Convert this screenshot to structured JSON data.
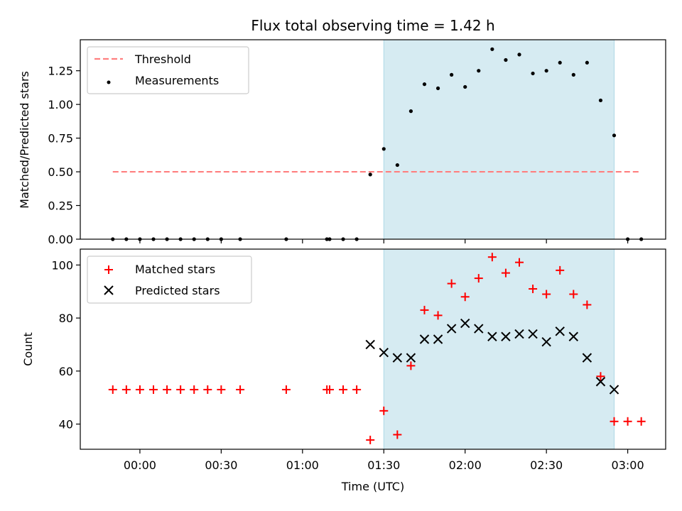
{
  "chart_data": [
    {
      "type": "scatter",
      "title": "Flux total observing time = 1.42 h",
      "xlabel": "",
      "ylabel": "Matched/Predicted stars",
      "xlim": [
        "23:38",
        "03:14"
      ],
      "ylim": [
        0,
        1.48
      ],
      "yticks": [
        "0.00",
        "0.25",
        "0.50",
        "0.75",
        "1.00",
        "1.25"
      ],
      "ytick_values": [
        0,
        0.25,
        0.5,
        0.75,
        1.0,
        1.25
      ],
      "grid": false,
      "legend": "top-left",
      "shaded_region": {
        "start": "01:30",
        "end": "02:55",
        "color": "#add8e6"
      },
      "series": [
        {
          "name": "Threshold",
          "kind": "dashed-line",
          "color": "#ff7f7f",
          "x": [
            "23:50",
            "03:05"
          ],
          "y": [
            0.5,
            0.5
          ]
        },
        {
          "name": "Measurements",
          "kind": "dots",
          "color": "#000000",
          "x": [
            "23:50",
            "23:55",
            "00:00",
            "00:05",
            "00:10",
            "00:15",
            "00:20",
            "00:25",
            "00:30",
            "00:37",
            "00:54",
            "01:09",
            "01:10",
            "01:15",
            "01:20",
            "01:25",
            "01:30",
            "01:35",
            "01:40",
            "01:45",
            "01:50",
            "01:55",
            "02:00",
            "02:05",
            "02:10",
            "02:15",
            "02:20",
            "02:25",
            "02:30",
            "02:35",
            "02:40",
            "02:45",
            "02:50",
            "02:55",
            "03:00",
            "03:05"
          ],
          "y": [
            0,
            0,
            0,
            0,
            0,
            0,
            0,
            0,
            0,
            0,
            0,
            0,
            0,
            0,
            0,
            0.48,
            0.67,
            0.55,
            0.95,
            1.15,
            1.12,
            1.22,
            1.13,
            1.25,
            1.41,
            1.33,
            1.37,
            1.23,
            1.25,
            1.31,
            1.22,
            1.31,
            1.03,
            0.77,
            0,
            0
          ]
        }
      ]
    },
    {
      "type": "scatter",
      "title": "",
      "xlabel": "Time (UTC)",
      "ylabel": "Count",
      "xlim": [
        "23:38",
        "03:14"
      ],
      "ylim": [
        30.5,
        106
      ],
      "xticks": [
        "00:00",
        "00:30",
        "01:00",
        "01:30",
        "02:00",
        "02:30",
        "03:00"
      ],
      "yticks": [
        "40",
        "60",
        "80",
        "100"
      ],
      "ytick_values": [
        40,
        60,
        80,
        100
      ],
      "grid": false,
      "legend": "top-left",
      "shaded_region": {
        "start": "01:30",
        "end": "02:55",
        "color": "#add8e6"
      },
      "series": [
        {
          "name": "Matched stars",
          "kind": "plus",
          "color": "#ff0000",
          "x": [
            "23:50",
            "23:55",
            "00:00",
            "00:05",
            "00:10",
            "00:15",
            "00:20",
            "00:25",
            "00:30",
            "00:37",
            "00:54",
            "01:09",
            "01:10",
            "01:15",
            "01:20",
            "01:25",
            "01:30",
            "01:35",
            "01:40",
            "01:45",
            "01:50",
            "01:55",
            "02:00",
            "02:05",
            "02:10",
            "02:15",
            "02:20",
            "02:25",
            "02:30",
            "02:35",
            "02:40",
            "02:45",
            "02:50",
            "02:55",
            "03:00",
            "03:05"
          ],
          "y": [
            53,
            53,
            53,
            53,
            53,
            53,
            53,
            53,
            53,
            53,
            53,
            53,
            53,
            53,
            53,
            34,
            45,
            36,
            62,
            83,
            81,
            93,
            88,
            95,
            103,
            97,
            101,
            91,
            89,
            98,
            89,
            85,
            58,
            41,
            41,
            41
          ]
        },
        {
          "name": "Predicted stars",
          "kind": "cross",
          "color": "#000000",
          "x": [
            "01:25",
            "01:30",
            "01:35",
            "01:40",
            "01:45",
            "01:50",
            "01:55",
            "02:00",
            "02:05",
            "02:10",
            "02:15",
            "02:20",
            "02:25",
            "02:30",
            "02:35",
            "02:40",
            "02:45",
            "02:50",
            "02:55"
          ],
          "y": [
            70,
            67,
            65,
            65,
            72,
            72,
            76,
            78,
            76,
            73,
            73,
            74,
            74,
            71,
            75,
            73,
            65,
            56,
            53
          ]
        }
      ]
    }
  ]
}
